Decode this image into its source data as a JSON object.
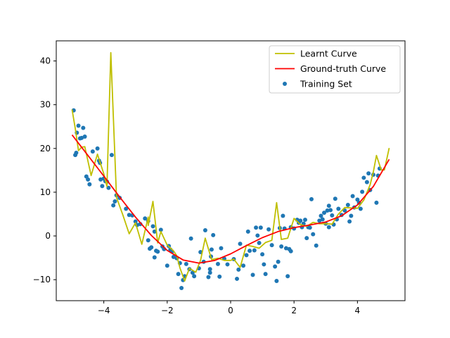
{
  "chart_data": {
    "type": "scatter",
    "title": "",
    "xlabel": "",
    "ylabel": "",
    "xlim": [
      -5.5,
      5.5
    ],
    "ylim": [
      -14.8,
      44.6
    ],
    "xticks": [
      -4,
      -2,
      0,
      2,
      4
    ],
    "xtick_labels": [
      "−4",
      "−2",
      "0",
      "2",
      "4"
    ],
    "yticks": [
      -10,
      0,
      10,
      20,
      30,
      40
    ],
    "ytick_labels": [
      "−10",
      "0",
      "10",
      "20",
      "30",
      "40"
    ],
    "grid": false,
    "legend_position": "top-right",
    "legend": [
      {
        "label": "Learnt Curve",
        "kind": "line",
        "color": "#bfbf00"
      },
      {
        "label": "Ground-truth Curve",
        "kind": "line",
        "color": "#ff0000"
      },
      {
        "label": "Training Set",
        "kind": "scatter",
        "color": "#1f77b4"
      }
    ],
    "series": [
      {
        "name": "Training Set",
        "kind": "scatter",
        "color": "#1f77b4",
        "points": [
          [
            -4.95,
            28.7
          ],
          [
            -4.9,
            18.5
          ],
          [
            -4.87,
            19.0
          ],
          [
            -4.85,
            23.6
          ],
          [
            -4.8,
            25.2
          ],
          [
            -4.75,
            22.3
          ],
          [
            -4.7,
            22.4
          ],
          [
            -4.65,
            24.7
          ],
          [
            -4.6,
            22.7
          ],
          [
            -4.55,
            13.6
          ],
          [
            -4.5,
            12.9
          ],
          [
            -4.45,
            11.8
          ],
          [
            -4.35,
            19.3
          ],
          [
            -4.2,
            20.0
          ],
          [
            -4.15,
            17.2
          ],
          [
            -4.12,
            16.7
          ],
          [
            -4.1,
            12.9
          ],
          [
            -4.05,
            11.4
          ],
          [
            -4.0,
            13.1
          ],
          [
            -3.95,
            12.5
          ],
          [
            -3.9,
            12.4
          ],
          [
            -3.85,
            11.0
          ],
          [
            -3.75,
            18.5
          ],
          [
            -3.7,
            7.0
          ],
          [
            -3.65,
            7.9
          ],
          [
            -3.6,
            9.3
          ],
          [
            -3.5,
            8.7
          ],
          [
            -3.3,
            6.2
          ],
          [
            -3.2,
            4.8
          ],
          [
            -3.1,
            4.7
          ],
          [
            -3.0,
            3.3
          ],
          [
            -2.95,
            2.5
          ],
          [
            -2.85,
            2.7
          ],
          [
            -2.7,
            4.0
          ],
          [
            -2.6,
            3.4
          ],
          [
            -2.6,
            -1.0
          ],
          [
            -2.55,
            -2.9
          ],
          [
            -2.5,
            -2.6
          ],
          [
            -2.45,
            2.2
          ],
          [
            -2.4,
            1.0
          ],
          [
            -2.4,
            -4.9
          ],
          [
            -2.35,
            -3.4
          ],
          [
            -2.3,
            -3.6
          ],
          [
            -2.2,
            1.4
          ],
          [
            -2.15,
            -2.4
          ],
          [
            -2.1,
            -3.0
          ],
          [
            -2.0,
            -6.8
          ],
          [
            -1.95,
            -2.3
          ],
          [
            -1.9,
            -3.1
          ],
          [
            -1.85,
            -3.6
          ],
          [
            -1.8,
            -4.8
          ],
          [
            -1.7,
            -5.1
          ],
          [
            -1.65,
            -8.7
          ],
          [
            -1.6,
            -6.2
          ],
          [
            -1.55,
            -11.9
          ],
          [
            -1.5,
            -10.1
          ],
          [
            -1.45,
            -9.2
          ],
          [
            -1.4,
            -6.4
          ],
          [
            -1.3,
            -7.6
          ],
          [
            -1.25,
            -0.6
          ],
          [
            -1.2,
            -8.4
          ],
          [
            -1.15,
            -9.2
          ],
          [
            -1.0,
            -7.4
          ],
          [
            -0.95,
            -3.7
          ],
          [
            -0.85,
            -5.9
          ],
          [
            -0.8,
            1.3
          ],
          [
            -0.7,
            -9.4
          ],
          [
            -0.65,
            -7.6
          ],
          [
            -0.65,
            -8.4
          ],
          [
            -0.62,
            -4.7
          ],
          [
            -0.6,
            -3.1
          ],
          [
            -0.55,
            0.2
          ],
          [
            -0.4,
            -6.4
          ],
          [
            -0.35,
            -9.3
          ],
          [
            -0.3,
            -2.8
          ],
          [
            -0.2,
            -5.2
          ],
          [
            -0.1,
            -6.5
          ],
          [
            0.1,
            -5.3
          ],
          [
            0.2,
            -9.8
          ],
          [
            0.25,
            -7.7
          ],
          [
            0.3,
            -1.8
          ],
          [
            0.4,
            -6.8
          ],
          [
            0.5,
            -4.4
          ],
          [
            0.55,
            1.0
          ],
          [
            0.6,
            -3.4
          ],
          [
            0.7,
            -8.9
          ],
          [
            0.75,
            -3.3
          ],
          [
            0.8,
            1.9
          ],
          [
            0.85,
            0.1
          ],
          [
            0.9,
            -1.6
          ],
          [
            0.95,
            1.9
          ],
          [
            1.0,
            -4.2
          ],
          [
            1.05,
            -6.5
          ],
          [
            1.1,
            -8.7
          ],
          [
            1.2,
            1.5
          ],
          [
            1.3,
            -2.1
          ],
          [
            1.4,
            -7.0
          ],
          [
            1.45,
            -10.3
          ],
          [
            1.5,
            -5.9
          ],
          [
            1.55,
            1.8
          ],
          [
            1.6,
            -2.4
          ],
          [
            1.65,
            4.6
          ],
          [
            1.7,
            1.7
          ],
          [
            1.75,
            -2.8
          ],
          [
            1.8,
            -9.2
          ],
          [
            1.85,
            -3.0
          ],
          [
            1.9,
            -3.5
          ],
          [
            1.9,
            2.0
          ],
          [
            2.0,
            1.7
          ],
          [
            2.1,
            3.7
          ],
          [
            2.15,
            3.0
          ],
          [
            2.2,
            3.5
          ],
          [
            2.25,
            2.0
          ],
          [
            2.3,
            2.8
          ],
          [
            2.35,
            3.7
          ],
          [
            2.4,
            -0.5
          ],
          [
            2.45,
            2.0
          ],
          [
            2.5,
            1.9
          ],
          [
            2.55,
            8.4
          ],
          [
            2.6,
            0.4
          ],
          [
            2.7,
            -2.2
          ],
          [
            2.8,
            3.5
          ],
          [
            2.85,
            4.6
          ],
          [
            2.9,
            3.8
          ],
          [
            2.95,
            5.3
          ],
          [
            3.0,
            2.8
          ],
          [
            3.05,
            5.8
          ],
          [
            3.1,
            6.9
          ],
          [
            3.1,
            2.0
          ],
          [
            3.15,
            5.9
          ],
          [
            3.2,
            4.7
          ],
          [
            3.25,
            2.6
          ],
          [
            3.3,
            8.5
          ],
          [
            3.35,
            3.8
          ],
          [
            3.4,
            6.2
          ],
          [
            3.5,
            4.8
          ],
          [
            3.6,
            5.8
          ],
          [
            3.7,
            7.1
          ],
          [
            3.75,
            3.3
          ],
          [
            3.8,
            4.6
          ],
          [
            3.85,
            9.1
          ],
          [
            3.9,
            6.5
          ],
          [
            4.0,
            8.3
          ],
          [
            4.05,
            7.6
          ],
          [
            4.1,
            6.2
          ],
          [
            4.15,
            10.1
          ],
          [
            4.2,
            13.3
          ],
          [
            4.3,
            12.3
          ],
          [
            4.35,
            14.3
          ],
          [
            4.4,
            10.5
          ],
          [
            4.5,
            14.0
          ],
          [
            4.6,
            7.6
          ],
          [
            4.65,
            13.8
          ],
          [
            4.7,
            15.4
          ]
        ]
      },
      {
        "name": "Learnt Curve",
        "kind": "line",
        "color": "#bfbf00",
        "points": [
          [
            -5.0,
            28.9
          ],
          [
            -4.9,
            24.5
          ],
          [
            -4.8,
            19.5
          ],
          [
            -4.7,
            20.3
          ],
          [
            -4.6,
            20.4
          ],
          [
            -4.4,
            13.8
          ],
          [
            -4.2,
            18.7
          ],
          [
            -4.0,
            14.2
          ],
          [
            -3.9,
            11.3
          ],
          [
            -3.78,
            41.9
          ],
          [
            -3.6,
            8.8
          ],
          [
            -3.4,
            4.8
          ],
          [
            -3.2,
            0.5
          ],
          [
            -3.0,
            3.0
          ],
          [
            -2.8,
            -1.9
          ],
          [
            -2.6,
            4.3
          ],
          [
            -2.6,
            2.4
          ],
          [
            -2.45,
            7.9
          ],
          [
            -2.3,
            -1.6
          ],
          [
            -2.2,
            1.0
          ],
          [
            -2.0,
            -2.1
          ],
          [
            -1.8,
            -3.4
          ],
          [
            -1.7,
            -4.5
          ],
          [
            -1.6,
            -7.3
          ],
          [
            -1.45,
            -10.3
          ],
          [
            -1.3,
            -7.4
          ],
          [
            -1.1,
            -8.3
          ],
          [
            -0.95,
            -5.6
          ],
          [
            -0.8,
            -0.5
          ],
          [
            -0.6,
            -5.4
          ],
          [
            -0.4,
            -5.1
          ],
          [
            -0.2,
            -5.6
          ],
          [
            0.0,
            -5.6
          ],
          [
            0.1,
            -5.3
          ],
          [
            0.3,
            -7.2
          ],
          [
            0.5,
            -2.1
          ],
          [
            0.7,
            -2.4
          ],
          [
            0.9,
            -2.8
          ],
          [
            1.1,
            -1.5
          ],
          [
            1.3,
            -1.0
          ],
          [
            1.45,
            7.6
          ],
          [
            1.6,
            -0.8
          ],
          [
            1.8,
            -0.5
          ],
          [
            2.0,
            4.0
          ],
          [
            2.2,
            2.6
          ],
          [
            2.4,
            2.2
          ],
          [
            2.6,
            3.1
          ],
          [
            2.8,
            2.8
          ],
          [
            3.0,
            2.8
          ],
          [
            3.2,
            2.7
          ],
          [
            3.4,
            5.0
          ],
          [
            3.6,
            6.5
          ],
          [
            3.8,
            6.4
          ],
          [
            4.0,
            6.3
          ],
          [
            4.2,
            8.2
          ],
          [
            4.4,
            11.7
          ],
          [
            4.5,
            14.6
          ],
          [
            4.6,
            18.4
          ],
          [
            4.75,
            15.1
          ],
          [
            4.85,
            15.1
          ],
          [
            5.0,
            20.1
          ]
        ]
      },
      {
        "name": "Ground-truth Curve",
        "kind": "line",
        "color": "#ff0000",
        "points": [
          [
            -5.0,
            23.1
          ],
          [
            -4.5,
            18.4
          ],
          [
            -4.0,
            13.7
          ],
          [
            -3.5,
            8.9
          ],
          [
            -3.0,
            4.3
          ],
          [
            -2.5,
            0.1
          ],
          [
            -2.0,
            -3.3
          ],
          [
            -1.5,
            -5.5
          ],
          [
            -1.0,
            -6.2
          ],
          [
            -0.5,
            -5.6
          ],
          [
            0.0,
            -4.1
          ],
          [
            0.5,
            -2.2
          ],
          [
            1.0,
            -0.4
          ],
          [
            1.5,
            1.0
          ],
          [
            2.0,
            1.9
          ],
          [
            2.5,
            2.5
          ],
          [
            3.0,
            3.2
          ],
          [
            3.5,
            4.6
          ],
          [
            4.0,
            7.1
          ],
          [
            4.5,
            11.3
          ],
          [
            5.0,
            17.5
          ]
        ]
      }
    ]
  }
}
